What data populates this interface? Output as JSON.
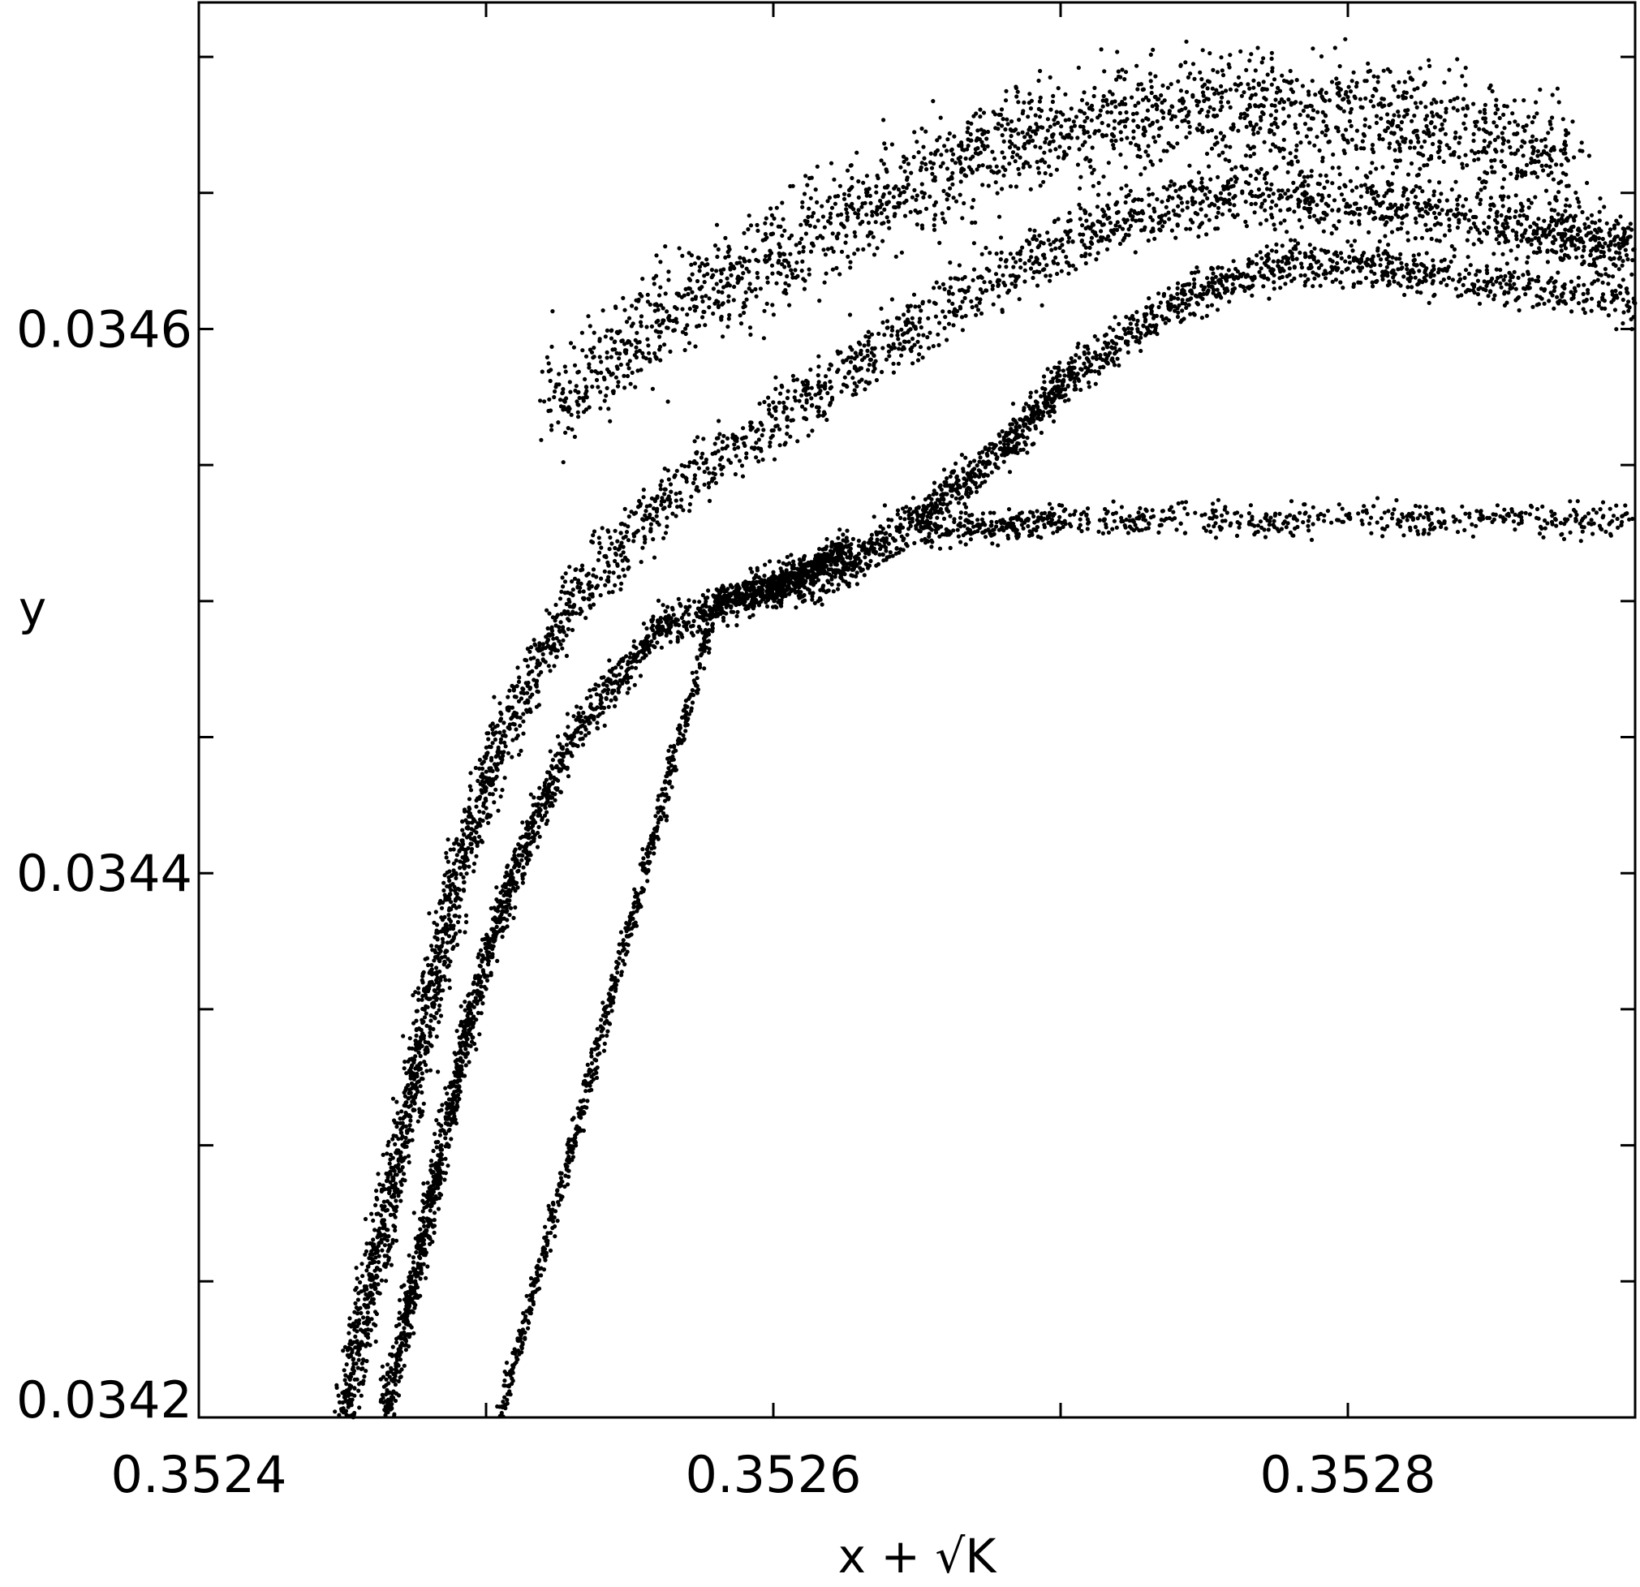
{
  "chart_data": {
    "type": "scatter",
    "title": "",
    "xlabel": "x + √K",
    "ylabel": "y",
    "xlim": [
      0.3524,
      0.3529
    ],
    "ylim": [
      0.0342,
      0.03472
    ],
    "x_ticks": [
      {
        "value": 0.3524,
        "label": "0.3524"
      },
      {
        "value": 0.3525,
        "label": ""
      },
      {
        "value": 0.3526,
        "label": "0.3526"
      },
      {
        "value": 0.3527,
        "label": ""
      },
      {
        "value": 0.3528,
        "label": "0.3528"
      },
      {
        "value": 0.3529,
        "label": ""
      }
    ],
    "x_minor_ticks": [
      0.3524,
      0.3525,
      0.3526,
      0.3527,
      0.3528,
      0.3529
    ],
    "y_ticks": [
      {
        "value": 0.0342,
        "label": "0.0342"
      },
      {
        "value": 0.0344,
        "label": "0.0344"
      },
      {
        "value": 0.0346,
        "label": "0.0346"
      }
    ],
    "y_minor_ticks": [
      0.03425,
      0.0343,
      0.03435,
      0.03445,
      0.0345,
      0.03455,
      0.03465,
      0.0347
    ],
    "grid": false,
    "legend": "none",
    "marker_color": "#000000",
    "structures": [
      {
        "name": "",
        "role": "outer-band",
        "points": [
          [
            0.35245,
            0.0342
          ],
          [
            0.35246,
            0.03425
          ],
          [
            0.35247,
            0.0343
          ],
          [
            0.35248,
            0.03435
          ],
          [
            0.35249,
            0.0344
          ],
          [
            0.352505,
            0.03445
          ],
          [
            0.35253,
            0.0345
          ],
          [
            0.35257,
            0.034545
          ],
          [
            0.35262,
            0.03458
          ],
          [
            0.35267,
            0.034615
          ],
          [
            0.35272,
            0.03464
          ],
          [
            0.35277,
            0.03465
          ],
          [
            0.35282,
            0.034645
          ],
          [
            0.35287,
            0.034635
          ],
          [
            0.3529,
            0.03463
          ]
        ],
        "spread_y": 1.2e-05
      },
      {
        "name": "",
        "role": "inner-loop-edge",
        "points": [
          [
            0.352465,
            0.0342
          ],
          [
            0.352475,
            0.03425
          ],
          [
            0.352485,
            0.0343
          ],
          [
            0.352495,
            0.03435
          ],
          [
            0.35251,
            0.0344
          ],
          [
            0.35253,
            0.03445
          ],
          [
            0.35256,
            0.03449
          ],
          [
            0.3526,
            0.034505
          ],
          [
            0.35262,
            0.03451
          ],
          [
            0.35265,
            0.03453
          ],
          [
            0.35268,
            0.034555
          ],
          [
            0.3527,
            0.03458
          ],
          [
            0.35274,
            0.03461
          ],
          [
            0.35278,
            0.034625
          ],
          [
            0.35283,
            0.03462
          ],
          [
            0.3529,
            0.03461
          ]
        ],
        "spread_y": 8e-06
      },
      {
        "name": "",
        "role": "diagonal-band",
        "points": [
          [
            0.352505,
            0.0342
          ],
          [
            0.35253,
            0.0343
          ],
          [
            0.352555,
            0.0344
          ],
          [
            0.35258,
            0.0345
          ],
          [
            0.3526,
            0.034505
          ],
          [
            0.352625,
            0.03452
          ]
        ],
        "spread_y": 5e-06
      },
      {
        "name": "",
        "role": "horizontal-band",
        "points": [
          [
            0.35265,
            0.034525
          ],
          [
            0.3527,
            0.03453
          ],
          [
            0.3528,
            0.03453
          ],
          [
            0.3529,
            0.03453
          ]
        ],
        "spread_y": 6e-06
      },
      {
        "name": "",
        "role": "top-scatter",
        "points": [
          [
            0.35252,
            0.034568
          ],
          [
            0.35256,
            0.034603
          ],
          [
            0.3526,
            0.034628
          ],
          [
            0.35264,
            0.034648
          ],
          [
            0.35268,
            0.034668
          ],
          [
            0.35272,
            0.034678
          ],
          [
            0.35276,
            0.034682
          ],
          [
            0.3528,
            0.03468
          ],
          [
            0.35284,
            0.034672
          ],
          [
            0.35288,
            0.034662
          ]
        ],
        "spread_y": 2e-05
      }
    ]
  }
}
